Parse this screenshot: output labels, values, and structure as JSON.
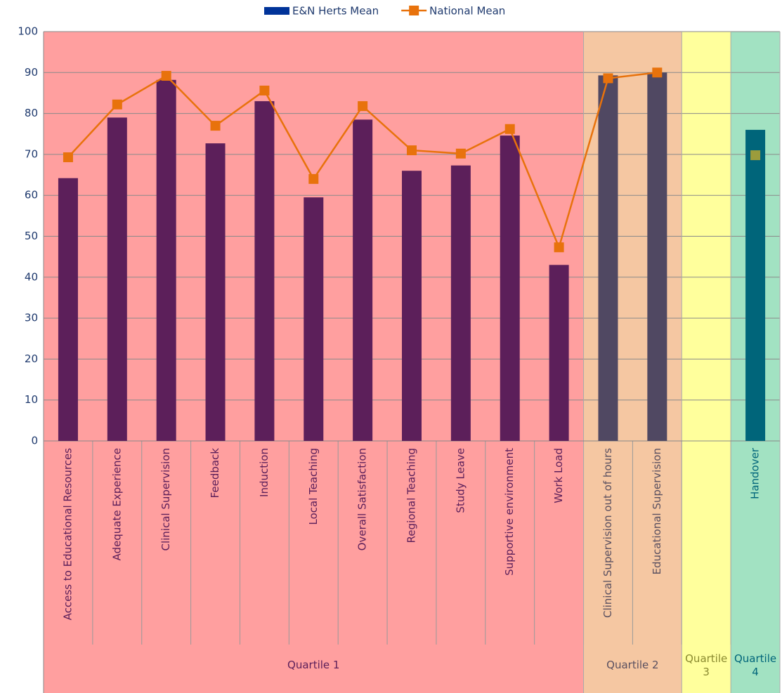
{
  "chart_data": {
    "type": "bar",
    "legend": "top",
    "grid": true,
    "ylim": [
      0,
      100
    ],
    "yticks": [
      0,
      10,
      20,
      30,
      40,
      50,
      60,
      70,
      80,
      90,
      100
    ],
    "categories": [
      "Access to Educational Resources",
      "Adequate Experience",
      "Clinical Supervision",
      "Feedback",
      "Induction",
      "Local Teaching",
      "Overall Satisfaction",
      "Regional Teaching",
      "Study Leave",
      "Supportive environment",
      "Work Load",
      "Clinical Supervision out of hours",
      "Educational Supervision",
      null,
      "Handover"
    ],
    "series": [
      {
        "name": "E&N Herts Mean",
        "type": "bar",
        "color": "#003399",
        "values": [
          64.2,
          79,
          88.2,
          72.7,
          83,
          59.5,
          78.5,
          66,
          67.3,
          74.6,
          43,
          89.3,
          90,
          null,
          76
        ],
        "colors": [
          "#5c1f5a",
          "#5c1f5a",
          "#5c1f5a",
          "#5c1f5a",
          "#5c1f5a",
          "#5c1f5a",
          "#5c1f5a",
          "#5c1f5a",
          "#5c1f5a",
          "#5c1f5a",
          "#5c1f5a",
          "#504862",
          "#504862",
          null,
          "#00657a"
        ]
      },
      {
        "name": "National Mean",
        "type": "line",
        "color": "#e8720c",
        "values": [
          69.3,
          82.2,
          89.2,
          77,
          85.6,
          64,
          81.8,
          71,
          70.2,
          76.2,
          47.3,
          88.6,
          90,
          null,
          69.8
        ],
        "marker_colors": [
          "#e8720c",
          "#e8720c",
          "#e8720c",
          "#e8720c",
          "#e8720c",
          "#e8720c",
          "#e8720c",
          "#e8720c",
          "#e8720c",
          "#e8720c",
          "#e8720c",
          "#e8720c",
          "#e8720c",
          null,
          "#9c9c3c"
        ]
      }
    ],
    "groups": [
      {
        "label": "Quartile 1",
        "size": 11,
        "color": "#ff9f9f",
        "text_color": "#5c1f5a"
      },
      {
        "label": "Quartile 2",
        "size": 2,
        "color": "#f5c7a2",
        "text_color": "#5a5060"
      },
      {
        "label": "Quartile 3",
        "size": 1,
        "color": "#ffff9c",
        "text_color": "#8a8a30"
      },
      {
        "label": "Quartile 4",
        "size": 1,
        "color": "#a2e2c2",
        "text_color": "#00657a"
      }
    ]
  }
}
